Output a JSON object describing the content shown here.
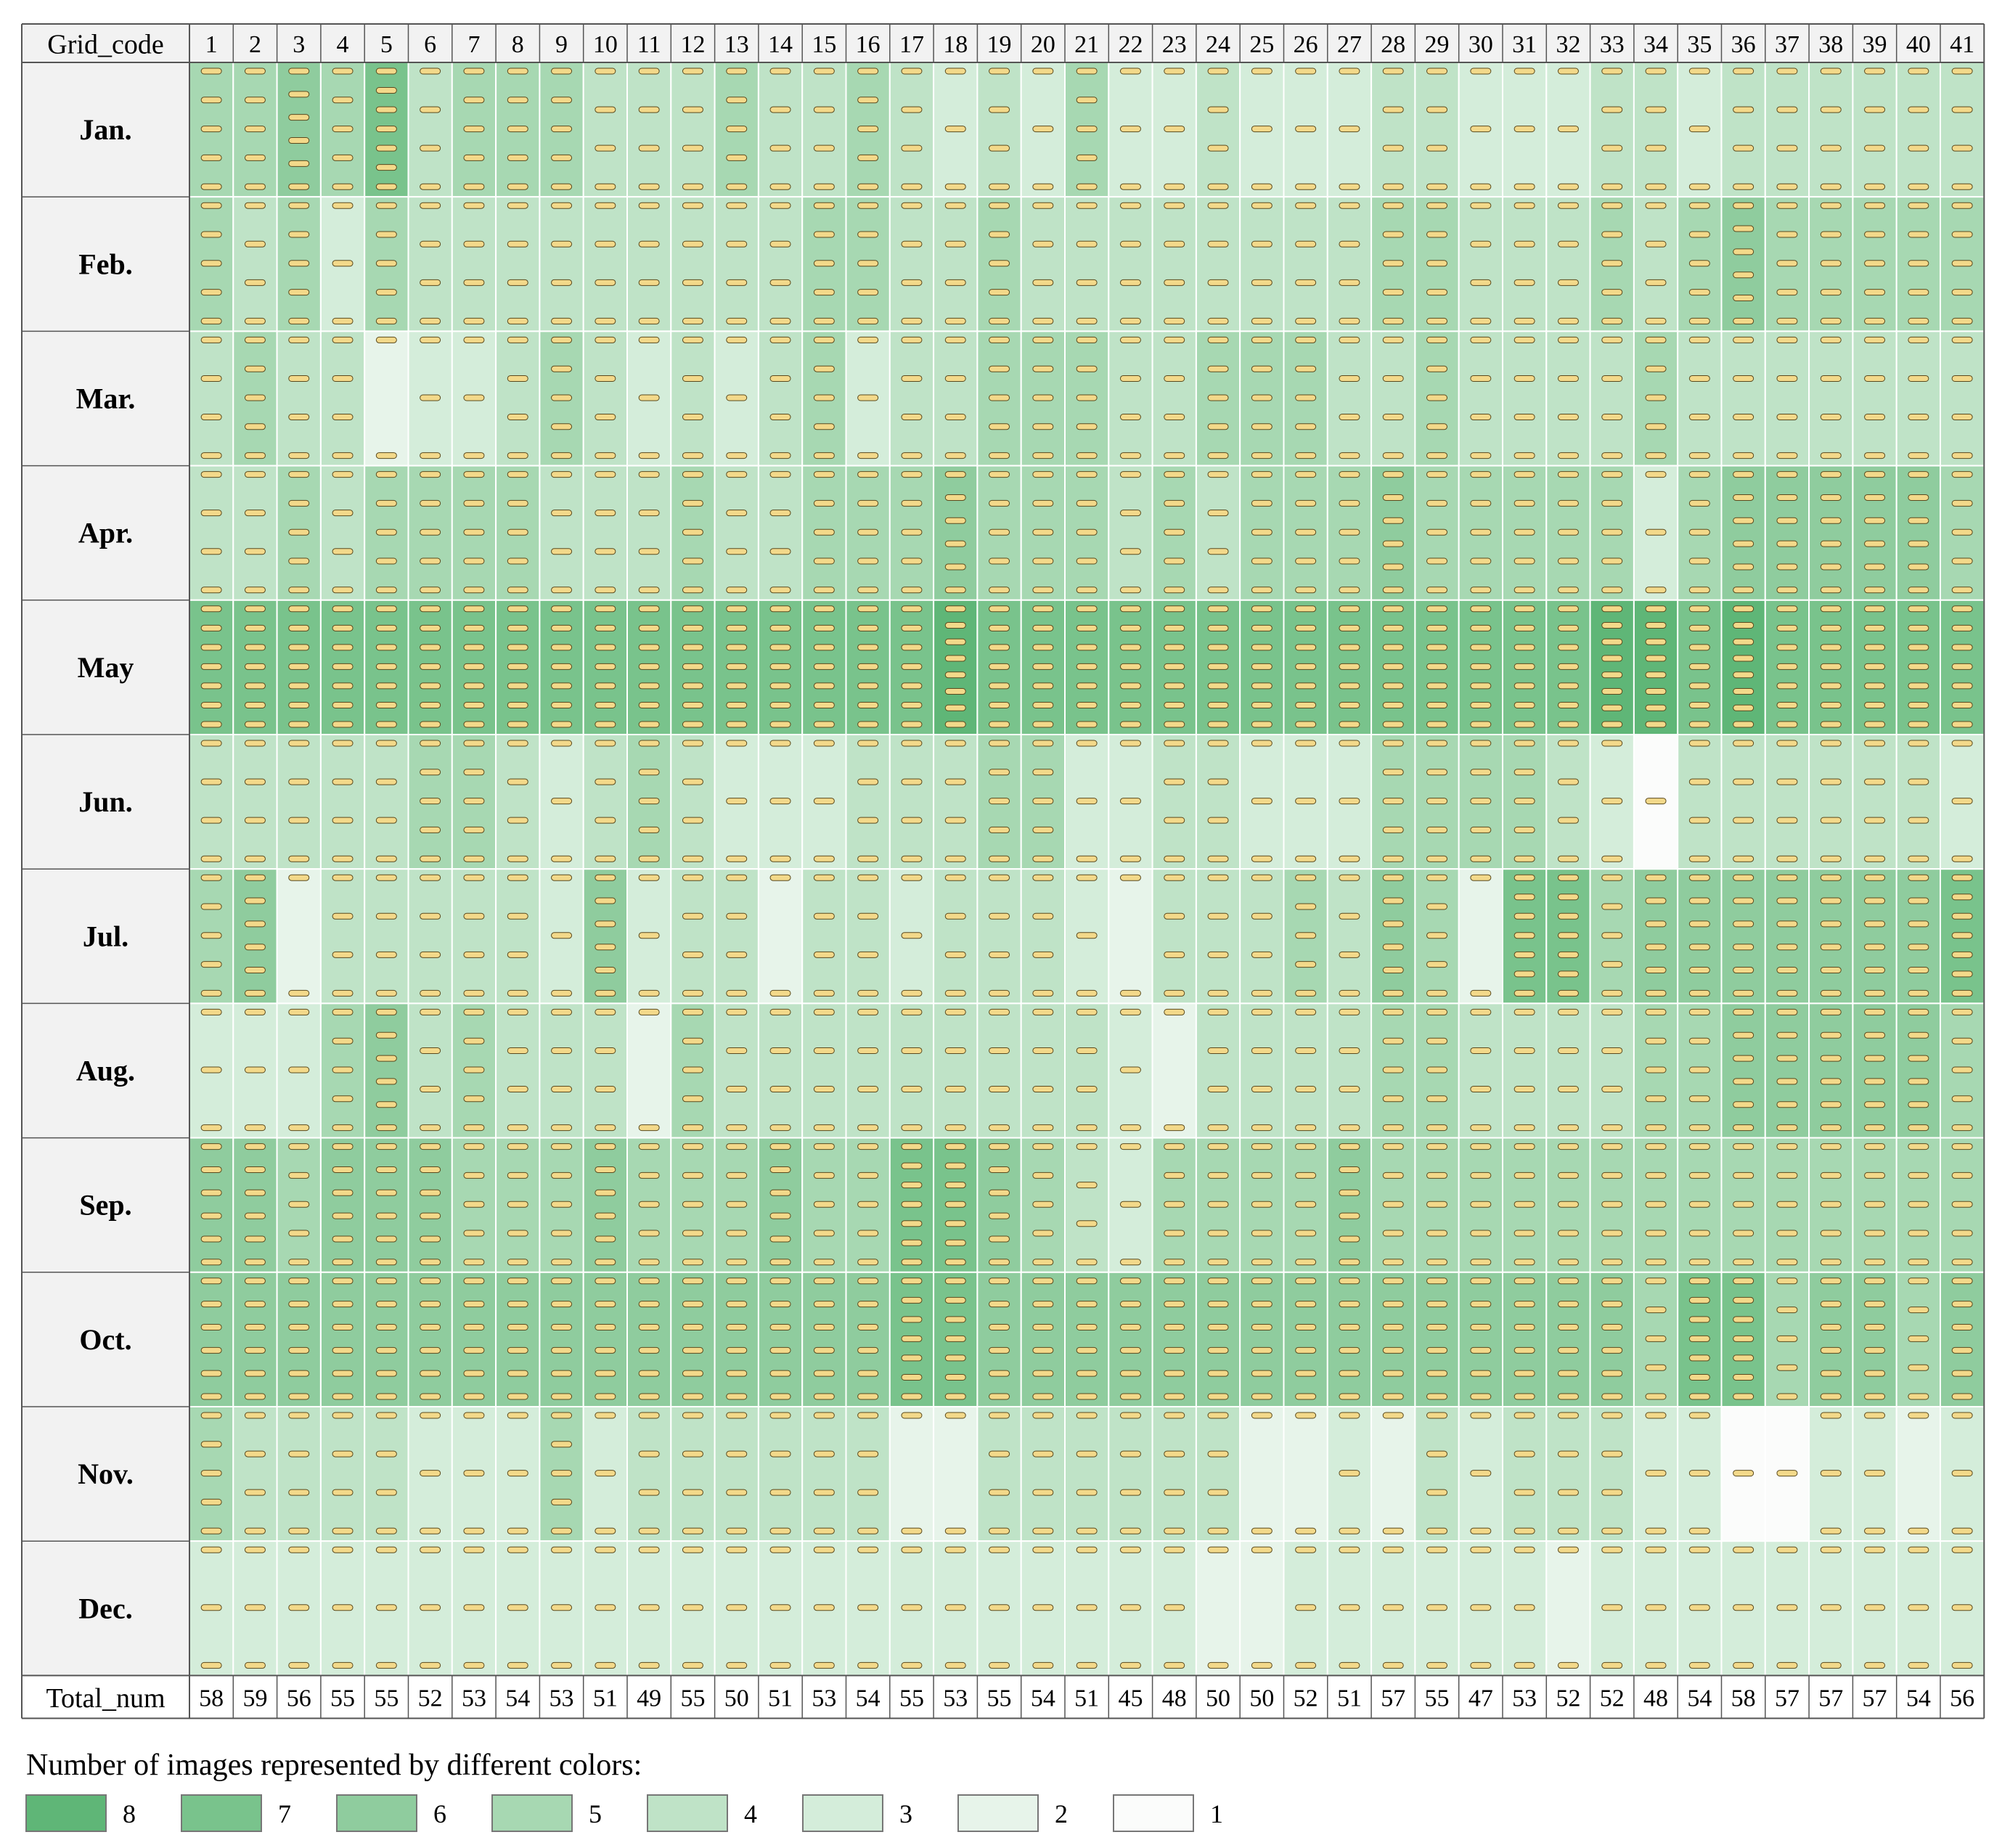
{
  "chart_data": {
    "type": "heatmap",
    "corner_label": "Grid_code",
    "total_label": "Total_num",
    "grid_codes": [
      "1",
      "2",
      "3",
      "4",
      "5",
      "6",
      "7",
      "8",
      "9",
      "10",
      "11",
      "12",
      "13",
      "14",
      "15",
      "16",
      "17",
      "18",
      "19",
      "20",
      "21",
      "22",
      "23",
      "24",
      "25",
      "26",
      "27",
      "28",
      "29",
      "30",
      "31",
      "32",
      "33",
      "34",
      "35",
      "36",
      "37",
      "38",
      "39",
      "40",
      "41"
    ],
    "months": [
      "Jan.",
      "Feb.",
      "Mar.",
      "Apr.",
      "May",
      "Jun.",
      "Jul.",
      "Aug.",
      "Sep.",
      "Oct.",
      "Nov.",
      "Dec."
    ],
    "totals": [
      "58",
      "59",
      "56",
      "55",
      "55",
      "52",
      "53",
      "54",
      "53",
      "51",
      "49",
      "55",
      "50",
      "51",
      "53",
      "54",
      "55",
      "53",
      "55",
      "54",
      "51",
      "45",
      "48",
      "50",
      "50",
      "52",
      "51",
      "57",
      "55",
      "47",
      "53",
      "52",
      "52",
      "48",
      "54",
      "58",
      "57",
      "57",
      "57",
      "54",
      "56"
    ],
    "values": [
      [
        5,
        5,
        6,
        5,
        7,
        4,
        5,
        5,
        5,
        4,
        4,
        4,
        5,
        4,
        4,
        5,
        4,
        3,
        4,
        3,
        5,
        3,
        3,
        4,
        3,
        3,
        3,
        4,
        4,
        3,
        3,
        3,
        4,
        4,
        3,
        4,
        4,
        4,
        4,
        4,
        4
      ],
      [
        5,
        4,
        5,
        3,
        5,
        4,
        4,
        4,
        4,
        4,
        4,
        4,
        4,
        4,
        5,
        5,
        4,
        4,
        5,
        4,
        4,
        4,
        4,
        4,
        4,
        4,
        4,
        5,
        5,
        4,
        4,
        4,
        5,
        4,
        5,
        6,
        5,
        5,
        5,
        5,
        5
      ],
      [
        4,
        5,
        4,
        4,
        2,
        3,
        3,
        4,
        5,
        4,
        3,
        4,
        3,
        4,
        5,
        3,
        4,
        4,
        5,
        5,
        5,
        4,
        4,
        5,
        5,
        5,
        4,
        4,
        5,
        4,
        4,
        4,
        4,
        5,
        4,
        4,
        4,
        4,
        4,
        4,
        4
      ],
      [
        4,
        4,
        5,
        4,
        5,
        5,
        5,
        5,
        4,
        4,
        4,
        5,
        4,
        4,
        5,
        5,
        5,
        6,
        5,
        5,
        5,
        4,
        5,
        4,
        5,
        5,
        5,
        6,
        5,
        5,
        5,
        5,
        5,
        3,
        5,
        6,
        6,
        6,
        6,
        6,
        5
      ],
      [
        7,
        7,
        7,
        7,
        7,
        7,
        7,
        7,
        7,
        7,
        7,
        7,
        7,
        7,
        7,
        7,
        7,
        8,
        7,
        7,
        7,
        7,
        7,
        7,
        7,
        7,
        7,
        7,
        7,
        7,
        7,
        7,
        8,
        8,
        7,
        8,
        7,
        7,
        7,
        7,
        7
      ],
      [
        4,
        4,
        4,
        4,
        4,
        5,
        5,
        4,
        3,
        4,
        5,
        4,
        3,
        3,
        3,
        4,
        4,
        4,
        5,
        5,
        3,
        3,
        4,
        4,
        3,
        3,
        3,
        5,
        5,
        5,
        5,
        4,
        3,
        1,
        4,
        4,
        4,
        4,
        4,
        4,
        3
      ],
      [
        5,
        6,
        2,
        4,
        4,
        4,
        4,
        4,
        3,
        6,
        3,
        4,
        4,
        2,
        4,
        4,
        3,
        4,
        4,
        4,
        3,
        2,
        4,
        4,
        4,
        5,
        4,
        6,
        5,
        2,
        7,
        7,
        5,
        6,
        6,
        6,
        6,
        6,
        6,
        6,
        7
      ],
      [
        3,
        3,
        3,
        5,
        6,
        4,
        5,
        4,
        4,
        4,
        2,
        5,
        4,
        4,
        4,
        4,
        4,
        4,
        4,
        4,
        4,
        3,
        2,
        4,
        4,
        4,
        4,
        5,
        5,
        4,
        4,
        4,
        4,
        5,
        5,
        6,
        6,
        6,
        6,
        6,
        5
      ],
      [
        6,
        6,
        5,
        6,
        6,
        6,
        5,
        5,
        5,
        6,
        5,
        5,
        5,
        6,
        5,
        5,
        7,
        7,
        6,
        5,
        4,
        3,
        5,
        5,
        5,
        5,
        6,
        5,
        5,
        5,
        5,
        5,
        5,
        5,
        5,
        5,
        5,
        5,
        5,
        5,
        5
      ],
      [
        6,
        6,
        6,
        6,
        6,
        6,
        6,
        6,
        6,
        6,
        6,
        6,
        6,
        6,
        6,
        6,
        7,
        7,
        6,
        6,
        6,
        6,
        6,
        6,
        6,
        6,
        6,
        6,
        6,
        6,
        6,
        6,
        6,
        5,
        7,
        7,
        5,
        6,
        6,
        5,
        6
      ],
      [
        5,
        4,
        4,
        4,
        4,
        3,
        3,
        3,
        5,
        3,
        4,
        4,
        4,
        4,
        4,
        4,
        2,
        2,
        4,
        4,
        4,
        4,
        4,
        4,
        2,
        2,
        3,
        2,
        4,
        3,
        4,
        4,
        4,
        3,
        3,
        1,
        1,
        3,
        3,
        2,
        3
      ],
      [
        3,
        3,
        3,
        3,
        3,
        3,
        3,
        3,
        3,
        3,
        3,
        3,
        3,
        3,
        3,
        3,
        3,
        3,
        3,
        3,
        3,
        3,
        3,
        2,
        2,
        3,
        3,
        3,
        3,
        3,
        3,
        2,
        3,
        3,
        3,
        3,
        3,
        3,
        3,
        3,
        3
      ]
    ],
    "legend_title": "Number of images represented by different colors:",
    "legend": [
      {
        "label": "8",
        "color": "#5fb677"
      },
      {
        "label": "7",
        "color": "#79c38c"
      },
      {
        "label": "6",
        "color": "#8fcc9e"
      },
      {
        "label": "5",
        "color": "#a7d8b2"
      },
      {
        "label": "4",
        "color": "#bfe3c7"
      },
      {
        "label": "3",
        "color": "#d4edda"
      },
      {
        "label": "2",
        "color": "#e7f4ea"
      },
      {
        "label": "1",
        "color": "#fbfcfb"
      }
    ],
    "marker_color": "#f3d98a",
    "header_fill": "#f2f2f2",
    "border_color": "#555555"
  }
}
